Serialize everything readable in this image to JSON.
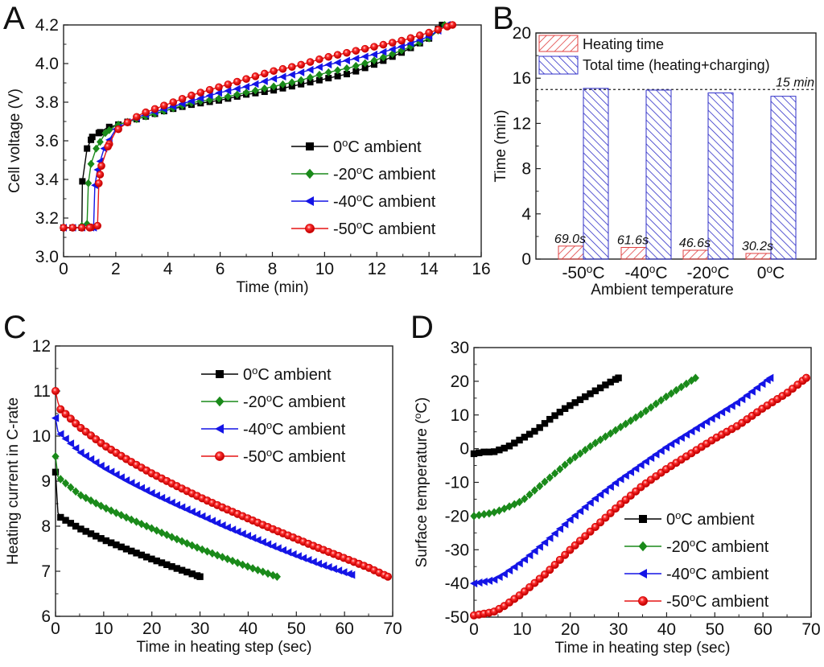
{
  "figure": {
    "panels": [
      "A",
      "B",
      "C",
      "D"
    ]
  },
  "colors": {
    "0C": "#000000",
    "-20C": "#1a8a1a",
    "-40C": "#1414e6",
    "-50C": "#e61414",
    "heating_bar": "#e04040",
    "total_bar": "#3030c8"
  },
  "chart_data": [
    {
      "panel": "A",
      "type": "line",
      "title": "",
      "xlabel": "Time (min)",
      "ylabel": "Cell voltage (V)",
      "xlim": [
        0,
        16
      ],
      "ylim": [
        3.0,
        4.2
      ],
      "xticks": [
        0,
        2,
        4,
        6,
        8,
        10,
        12,
        14,
        16
      ],
      "yticks": [
        3.0,
        3.2,
        3.4,
        3.6,
        3.8,
        4.0,
        4.2
      ],
      "xtick_labels": [
        "0",
        "2",
        "4",
        "6",
        "8",
        "10",
        "12",
        "14",
        "16"
      ],
      "ytick_labels": [
        "3.0",
        "3.2",
        "3.4",
        "3.6",
        "3.8",
        "4.0",
        "4.2"
      ],
      "legend_position": "lower-right",
      "series": [
        {
          "name": "0°C ambient",
          "key": "0C",
          "marker": "square",
          "x": [
            0,
            0.5,
            0.7,
            0.72,
            0.9,
            1.1,
            1.35,
            1.7,
            2.0,
            2.5,
            3,
            4,
            5,
            6,
            7,
            8,
            9,
            10,
            11,
            12,
            13,
            14,
            14.5
          ],
          "y": [
            3.15,
            3.15,
            3.15,
            3.39,
            3.56,
            3.62,
            3.64,
            3.67,
            3.68,
            3.7,
            3.72,
            3.76,
            3.79,
            3.81,
            3.84,
            3.86,
            3.89,
            3.92,
            3.95,
            4.0,
            4.06,
            4.13,
            4.2
          ]
        },
        {
          "name": "-20°C ambient",
          "key": "-20C",
          "marker": "diamond",
          "x": [
            0,
            0.5,
            0.9,
            0.95,
            1.05,
            1.25,
            1.6,
            2.0,
            2.5,
            3,
            4,
            5,
            6,
            7,
            8,
            9,
            10,
            11,
            12,
            13,
            14,
            14.6
          ],
          "y": [
            3.15,
            3.15,
            3.17,
            3.38,
            3.48,
            3.56,
            3.64,
            3.68,
            3.7,
            3.72,
            3.76,
            3.8,
            3.82,
            3.85,
            3.88,
            3.91,
            3.95,
            3.98,
            4.02,
            4.07,
            4.13,
            4.2
          ]
        },
        {
          "name": "-40°C ambient",
          "key": "-40C",
          "marker": "triangle-left",
          "x": [
            0,
            0.5,
            1.15,
            1.2,
            1.3,
            1.55,
            2.0,
            2.5,
            3,
            4,
            5,
            6,
            7,
            8,
            9,
            10,
            11,
            12,
            13,
            14,
            14.7
          ],
          "y": [
            3.15,
            3.15,
            3.15,
            3.37,
            3.45,
            3.56,
            3.66,
            3.7,
            3.73,
            3.77,
            3.81,
            3.85,
            3.88,
            3.92,
            3.95,
            3.99,
            4.02,
            4.05,
            4.09,
            4.14,
            4.2
          ]
        },
        {
          "name": "-50°C ambient",
          "key": "-50C",
          "marker": "circle",
          "x": [
            0,
            0.5,
            1.0,
            1.3,
            1.35,
            1.45,
            1.7,
            2.0,
            2.5,
            3,
            4,
            5,
            6,
            7,
            8,
            9,
            10,
            11,
            12,
            13,
            14,
            14.9
          ],
          "y": [
            3.15,
            3.15,
            3.15,
            3.16,
            3.38,
            3.47,
            3.57,
            3.65,
            3.7,
            3.74,
            3.79,
            3.84,
            3.88,
            3.92,
            3.96,
            3.99,
            4.03,
            4.06,
            4.09,
            4.12,
            4.16,
            4.2
          ]
        }
      ]
    },
    {
      "panel": "B",
      "type": "bar",
      "title": "",
      "xlabel": "Ambient temperature",
      "ylabel": "Time (min)",
      "ylim": [
        0,
        20
      ],
      "yticks": [
        0,
        4,
        8,
        12,
        16,
        20
      ],
      "ytick_labels": [
        "0",
        "4",
        "8",
        "12",
        "16",
        "20"
      ],
      "categories": [
        "-50°C",
        "-40°C",
        "-20°C",
        "0°C"
      ],
      "legend_position": "top-left",
      "series": [
        {
          "name": "Heating time",
          "key": "heating_bar",
          "values": [
            1.15,
            1.03,
            0.78,
            0.5
          ],
          "data_labels": [
            "69.0s",
            "61.6s",
            "46.6s",
            "30.2s"
          ]
        },
        {
          "name": "Total time (heating+charging)",
          "key": "total_bar",
          "values": [
            15.1,
            14.95,
            14.7,
            14.4
          ]
        }
      ],
      "reference_line": {
        "value": 15,
        "label": "15 min",
        "style": "dashed"
      }
    },
    {
      "panel": "C",
      "type": "line",
      "title": "",
      "xlabel": "Time in heating step (sec)",
      "ylabel": "Heating current in C-rate",
      "xlim": [
        0,
        70
      ],
      "ylim": [
        6,
        12
      ],
      "xticks": [
        0,
        10,
        20,
        30,
        40,
        50,
        60,
        70
      ],
      "yticks": [
        6,
        7,
        8,
        9,
        10,
        11,
        12
      ],
      "xtick_labels": [
        "0",
        "10",
        "20",
        "30",
        "40",
        "50",
        "60",
        "70"
      ],
      "ytick_labels": [
        "6",
        "7",
        "8",
        "9",
        "10",
        "11",
        "12"
      ],
      "legend_position": "top-right",
      "series": [
        {
          "name": "0°C ambient",
          "key": "0C",
          "marker": "square",
          "x": [
            0,
            0.5,
            1,
            5,
            10,
            15,
            20,
            25,
            30
          ],
          "y": [
            9.2,
            8.3,
            8.2,
            7.95,
            7.7,
            7.48,
            7.27,
            7.07,
            6.88
          ]
        },
        {
          "name": "-20°C ambient",
          "key": "-20C",
          "marker": "diamond",
          "x": [
            0,
            0.5,
            1,
            5,
            10,
            15,
            20,
            25,
            30,
            35,
            40,
            46
          ],
          "y": [
            9.55,
            9.1,
            9.05,
            8.7,
            8.42,
            8.18,
            7.95,
            7.72,
            7.5,
            7.3,
            7.1,
            6.88
          ]
        },
        {
          "name": "-40°C ambient",
          "key": "-40C",
          "marker": "triangle-left",
          "x": [
            0,
            0.5,
            1,
            5,
            10,
            15,
            20,
            25,
            30,
            35,
            40,
            45,
            50,
            55,
            61.5
          ],
          "y": [
            10.4,
            10.1,
            10.05,
            9.65,
            9.3,
            9.0,
            8.73,
            8.48,
            8.24,
            8.0,
            7.78,
            7.56,
            7.35,
            7.15,
            6.92
          ]
        },
        {
          "name": "-50°C ambient",
          "key": "-50C",
          "marker": "circle",
          "x": [
            0,
            0.5,
            1,
            5,
            10,
            15,
            20,
            25,
            30,
            35,
            40,
            45,
            50,
            55,
            60,
            65,
            69
          ],
          "y": [
            11.0,
            10.75,
            10.6,
            10.2,
            9.8,
            9.47,
            9.17,
            8.9,
            8.64,
            8.4,
            8.17,
            7.94,
            7.72,
            7.5,
            7.29,
            7.08,
            6.88
          ]
        }
      ]
    },
    {
      "panel": "D",
      "type": "line",
      "title": "",
      "xlabel": "Time in heating step (sec)",
      "ylabel": "Surface temperature (°C)",
      "xlim": [
        0,
        70
      ],
      "ylim": [
        -50,
        30
      ],
      "xticks": [
        0,
        10,
        20,
        30,
        40,
        50,
        60,
        70
      ],
      "yticks": [
        -50,
        -40,
        -30,
        -20,
        -10,
        0,
        10,
        20,
        30
      ],
      "xtick_labels": [
        "0",
        "10",
        "20",
        "30",
        "40",
        "50",
        "60",
        "70"
      ],
      "ytick_labels": [
        "-50",
        "-40",
        "-30",
        "-20",
        "-10",
        "0",
        "10",
        "20",
        "30"
      ],
      "legend_position": "lower-right",
      "series": [
        {
          "name": "0°C ambient",
          "key": "0C",
          "marker": "square",
          "x": [
            0,
            2,
            4,
            5,
            7,
            10,
            13,
            16,
            19,
            22,
            25,
            28,
            30
          ],
          "y": [
            -1.5,
            -1,
            -1,
            -0.5,
            0.5,
            3,
            5.5,
            9,
            12,
            14.5,
            17,
            19.5,
            21
          ]
        },
        {
          "name": "-20°C ambient",
          "key": "-20C",
          "marker": "diamond",
          "x": [
            0,
            2,
            4,
            6,
            10,
            15,
            20,
            25,
            30,
            35,
            40,
            46
          ],
          "y": [
            -20,
            -19.5,
            -19,
            -18,
            -15.5,
            -9.5,
            -3.5,
            1.5,
            6,
            10.5,
            15.5,
            21
          ]
        },
        {
          "name": "-40°C ambient",
          "key": "-40C",
          "marker": "triangle-left",
          "x": [
            0,
            2,
            4,
            6,
            10,
            15,
            20,
            25,
            30,
            35,
            40,
            45,
            50,
            55,
            61.5
          ],
          "y": [
            -40,
            -39.5,
            -39,
            -37.5,
            -33.5,
            -27.5,
            -21,
            -15,
            -9.5,
            -4.5,
            0.5,
            5,
            9.5,
            14,
            21
          ]
        },
        {
          "name": "-50°C ambient",
          "key": "-50C",
          "marker": "circle",
          "x": [
            0,
            2,
            4,
            6,
            10,
            15,
            20,
            25,
            30,
            35,
            40,
            45,
            50,
            55,
            60,
            65,
            69
          ],
          "y": [
            -49.5,
            -49,
            -48.5,
            -47,
            -43,
            -37,
            -30,
            -23.5,
            -17,
            -11,
            -6,
            -1.5,
            3,
            7,
            12,
            16.5,
            21
          ]
        }
      ]
    }
  ]
}
